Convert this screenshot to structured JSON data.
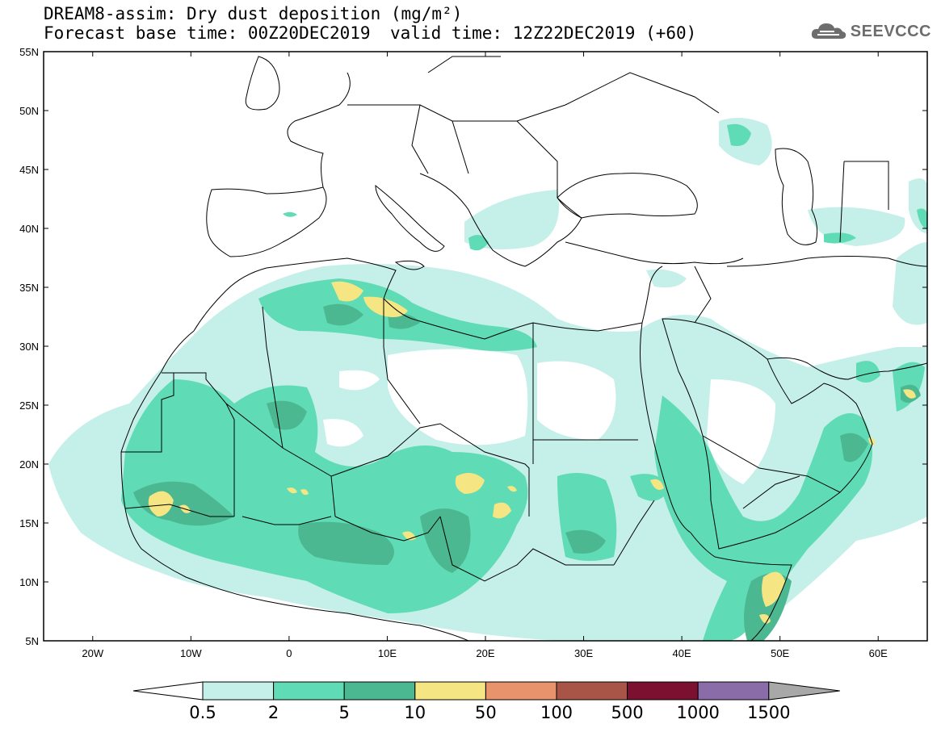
{
  "header": {
    "title_line1": "DREAM8-assim: Dry dust deposition (mg/m²)",
    "forecast_base": "Forecast base time: 00Z20DEC2019",
    "valid_time": "valid time: 12Z22DEC2019 (+60)",
    "logo_text": "SEEVCCC",
    "logo_icon": "cloud-icon"
  },
  "map": {
    "lat_labels": [
      "55N",
      "50N",
      "45N",
      "40N",
      "35N",
      "30N",
      "25N",
      "20N",
      "15N",
      "10N",
      "5N"
    ],
    "lon_labels": [
      "20W",
      "10W",
      "0",
      "10E",
      "20E",
      "30E",
      "40E",
      "50E",
      "60E"
    ],
    "lat_values": [
      55,
      50,
      45,
      40,
      35,
      30,
      25,
      20,
      15,
      10,
      5
    ],
    "lon_values": [
      -20,
      -10,
      0,
      10,
      20,
      30,
      40,
      50,
      60
    ],
    "extent": {
      "lon_min": -25,
      "lon_max": 65,
      "lat_min": 5,
      "lat_max": 55
    }
  },
  "colorbar": {
    "labels": [
      "0.5",
      "2",
      "5",
      "10",
      "50",
      "100",
      "500",
      "1000",
      "1500"
    ],
    "colors": [
      "#c5efe9",
      "#5fdcb5",
      "#4cb892",
      "#f5e683",
      "#e8936b",
      "#a85548",
      "#7c1030",
      "#8a6ca8"
    ],
    "under_color": "#ffffff",
    "over_color": "#a8a8a8"
  }
}
